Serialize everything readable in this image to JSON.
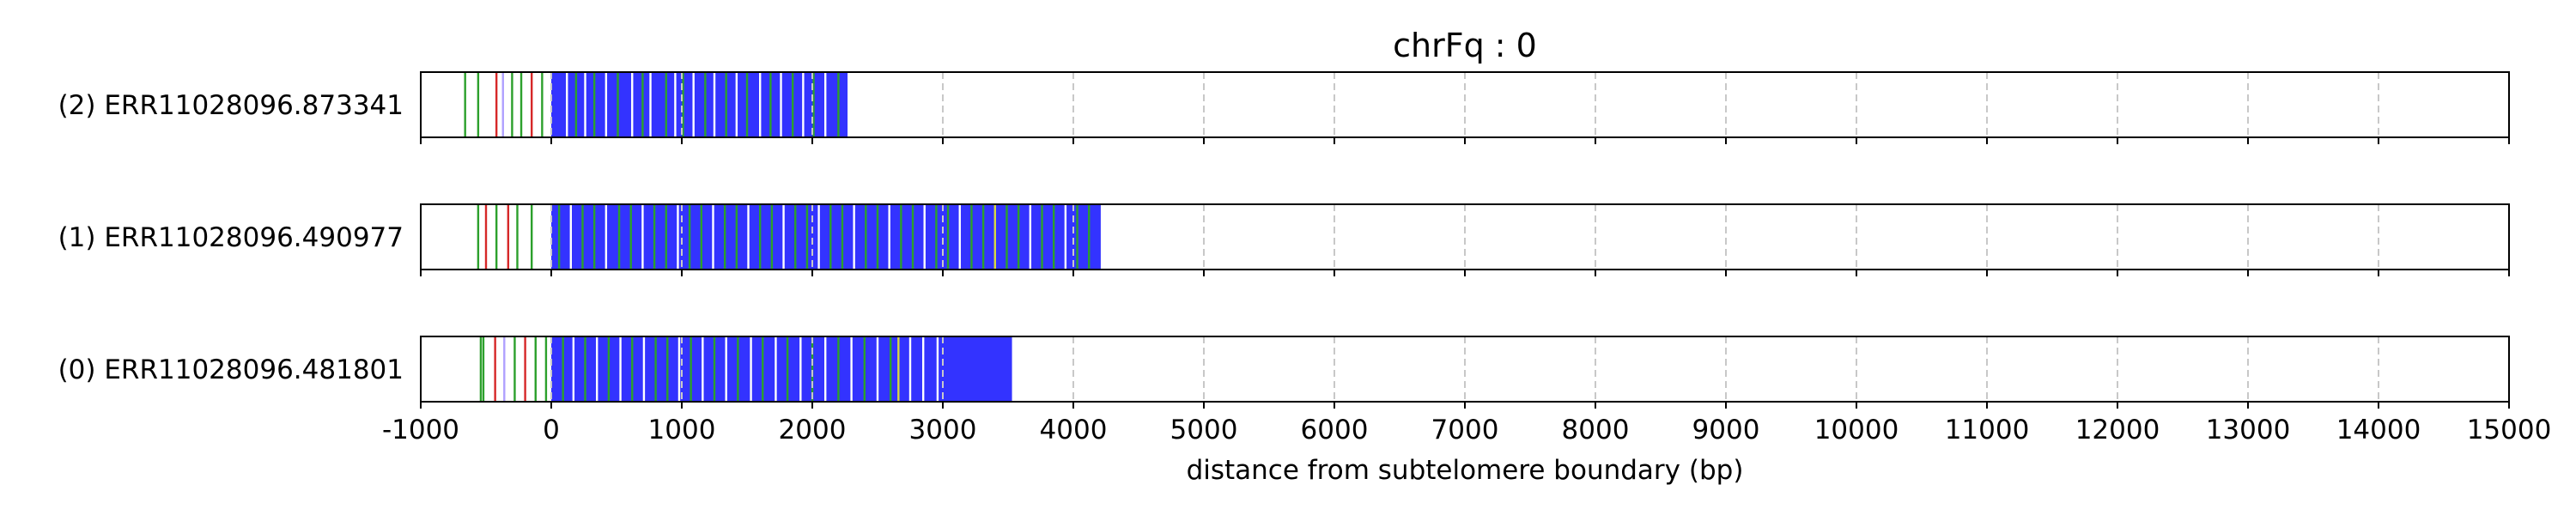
{
  "chart_data": {
    "type": "read-track",
    "title": "chrFq : 0",
    "xlabel": "distance from subtelomere boundary (bp)",
    "xlim": [
      -1000,
      15000
    ],
    "xticks": [
      -1000,
      0,
      1000,
      2000,
      3000,
      4000,
      5000,
      6000,
      7000,
      8000,
      9000,
      10000,
      11000,
      12000,
      13000,
      14000,
      15000
    ],
    "grid": "vertical dashed at each x tick",
    "colors": {
      "repeat": "#3333ff",
      "green": "#2ca02c",
      "red": "#d62728",
      "lavender": "#b0a0ff",
      "white": "#ffffff",
      "yellow": "#d8d840",
      "grid": "#c8c8c8"
    },
    "reads": [
      {
        "label": "(2) ERR11028096.873341",
        "repeat_start": 0,
        "repeat_end": 2270,
        "marks": [
          {
            "x": -660,
            "color": "green"
          },
          {
            "x": -560,
            "color": "green"
          },
          {
            "x": -420,
            "color": "red"
          },
          {
            "x": -370,
            "color": "lavender"
          },
          {
            "x": -300,
            "color": "green"
          },
          {
            "x": -230,
            "color": "green"
          },
          {
            "x": -150,
            "color": "red"
          },
          {
            "x": -70,
            "color": "green"
          },
          {
            "x": 120,
            "color": "white"
          },
          {
            "x": 190,
            "color": "green"
          },
          {
            "x": 260,
            "color": "white"
          },
          {
            "x": 330,
            "color": "green"
          },
          {
            "x": 420,
            "color": "white"
          },
          {
            "x": 510,
            "color": "green"
          },
          {
            "x": 620,
            "color": "white"
          },
          {
            "x": 700,
            "color": "green"
          },
          {
            "x": 760,
            "color": "white"
          },
          {
            "x": 880,
            "color": "green"
          },
          {
            "x": 950,
            "color": "white"
          },
          {
            "x": 1010,
            "color": "green"
          },
          {
            "x": 1090,
            "color": "white"
          },
          {
            "x": 1180,
            "color": "green"
          },
          {
            "x": 1250,
            "color": "white"
          },
          {
            "x": 1340,
            "color": "green"
          },
          {
            "x": 1420,
            "color": "white"
          },
          {
            "x": 1500,
            "color": "green"
          },
          {
            "x": 1600,
            "color": "white"
          },
          {
            "x": 1680,
            "color": "green"
          },
          {
            "x": 1760,
            "color": "white"
          },
          {
            "x": 1850,
            "color": "green"
          },
          {
            "x": 1930,
            "color": "white"
          },
          {
            "x": 2010,
            "color": "green"
          },
          {
            "x": 2100,
            "color": "white"
          },
          {
            "x": 2200,
            "color": "green"
          }
        ]
      },
      {
        "label": "(1) ERR11028096.490977",
        "repeat_start": 0,
        "repeat_end": 4210,
        "marks": [
          {
            "x": -560,
            "color": "green"
          },
          {
            "x": -500,
            "color": "red"
          },
          {
            "x": -420,
            "color": "green"
          },
          {
            "x": -330,
            "color": "red"
          },
          {
            "x": -260,
            "color": "green"
          },
          {
            "x": -150,
            "color": "green"
          },
          {
            "x": 60,
            "color": "green"
          },
          {
            "x": 150,
            "color": "white"
          },
          {
            "x": 240,
            "color": "green"
          },
          {
            "x": 330,
            "color": "green"
          },
          {
            "x": 420,
            "color": "white"
          },
          {
            "x": 520,
            "color": "green"
          },
          {
            "x": 610,
            "color": "green"
          },
          {
            "x": 700,
            "color": "white"
          },
          {
            "x": 790,
            "color": "green"
          },
          {
            "x": 880,
            "color": "green"
          },
          {
            "x": 970,
            "color": "white"
          },
          {
            "x": 1060,
            "color": "green"
          },
          {
            "x": 1150,
            "color": "green"
          },
          {
            "x": 1240,
            "color": "white"
          },
          {
            "x": 1330,
            "color": "green"
          },
          {
            "x": 1420,
            "color": "green"
          },
          {
            "x": 1510,
            "color": "white"
          },
          {
            "x": 1600,
            "color": "green"
          },
          {
            "x": 1690,
            "color": "green"
          },
          {
            "x": 1780,
            "color": "white"
          },
          {
            "x": 1870,
            "color": "green"
          },
          {
            "x": 1960,
            "color": "green"
          },
          {
            "x": 2050,
            "color": "white"
          },
          {
            "x": 2140,
            "color": "green"
          },
          {
            "x": 2230,
            "color": "green"
          },
          {
            "x": 2320,
            "color": "white"
          },
          {
            "x": 2410,
            "color": "green"
          },
          {
            "x": 2500,
            "color": "green"
          },
          {
            "x": 2590,
            "color": "white"
          },
          {
            "x": 2680,
            "color": "green"
          },
          {
            "x": 2770,
            "color": "green"
          },
          {
            "x": 2860,
            "color": "white"
          },
          {
            "x": 2950,
            "color": "green"
          },
          {
            "x": 3040,
            "color": "green"
          },
          {
            "x": 3130,
            "color": "white"
          },
          {
            "x": 3220,
            "color": "green"
          },
          {
            "x": 3310,
            "color": "green"
          },
          {
            "x": 3400,
            "color": "yellow"
          },
          {
            "x": 3490,
            "color": "green"
          },
          {
            "x": 3580,
            "color": "green"
          },
          {
            "x": 3670,
            "color": "white"
          },
          {
            "x": 3760,
            "color": "green"
          },
          {
            "x": 3850,
            "color": "green"
          },
          {
            "x": 3940,
            "color": "white"
          },
          {
            "x": 4030,
            "color": "green"
          },
          {
            "x": 4120,
            "color": "green"
          }
        ]
      },
      {
        "label": "(0) ERR11028096.481801",
        "repeat_start": 0,
        "repeat_end": 3530,
        "marks": [
          {
            "x": -540,
            "color": "green"
          },
          {
            "x": -520,
            "color": "green"
          },
          {
            "x": -430,
            "color": "red"
          },
          {
            "x": -360,
            "color": "lavender"
          },
          {
            "x": -280,
            "color": "green"
          },
          {
            "x": -200,
            "color": "red"
          },
          {
            "x": -120,
            "color": "green"
          },
          {
            "x": -40,
            "color": "green"
          },
          {
            "x": 90,
            "color": "green"
          },
          {
            "x": 170,
            "color": "white"
          },
          {
            "x": 260,
            "color": "green"
          },
          {
            "x": 350,
            "color": "white"
          },
          {
            "x": 440,
            "color": "green"
          },
          {
            "x": 530,
            "color": "white"
          },
          {
            "x": 620,
            "color": "green"
          },
          {
            "x": 710,
            "color": "white"
          },
          {
            "x": 800,
            "color": "green"
          },
          {
            "x": 890,
            "color": "green"
          },
          {
            "x": 980,
            "color": "white"
          },
          {
            "x": 1070,
            "color": "green"
          },
          {
            "x": 1160,
            "color": "white"
          },
          {
            "x": 1250,
            "color": "green"
          },
          {
            "x": 1340,
            "color": "white"
          },
          {
            "x": 1430,
            "color": "green"
          },
          {
            "x": 1530,
            "color": "white"
          },
          {
            "x": 1620,
            "color": "green"
          },
          {
            "x": 1720,
            "color": "white"
          },
          {
            "x": 1810,
            "color": "green"
          },
          {
            "x": 1910,
            "color": "white"
          },
          {
            "x": 2000,
            "color": "green"
          },
          {
            "x": 2100,
            "color": "white"
          },
          {
            "x": 2200,
            "color": "green"
          },
          {
            "x": 2300,
            "color": "white"
          },
          {
            "x": 2400,
            "color": "green"
          },
          {
            "x": 2500,
            "color": "white"
          },
          {
            "x": 2600,
            "color": "green"
          },
          {
            "x": 2660,
            "color": "yellow"
          },
          {
            "x": 2750,
            "color": "white"
          },
          {
            "x": 2850,
            "color": "white"
          },
          {
            "x": 2960,
            "color": "white"
          }
        ]
      }
    ]
  }
}
